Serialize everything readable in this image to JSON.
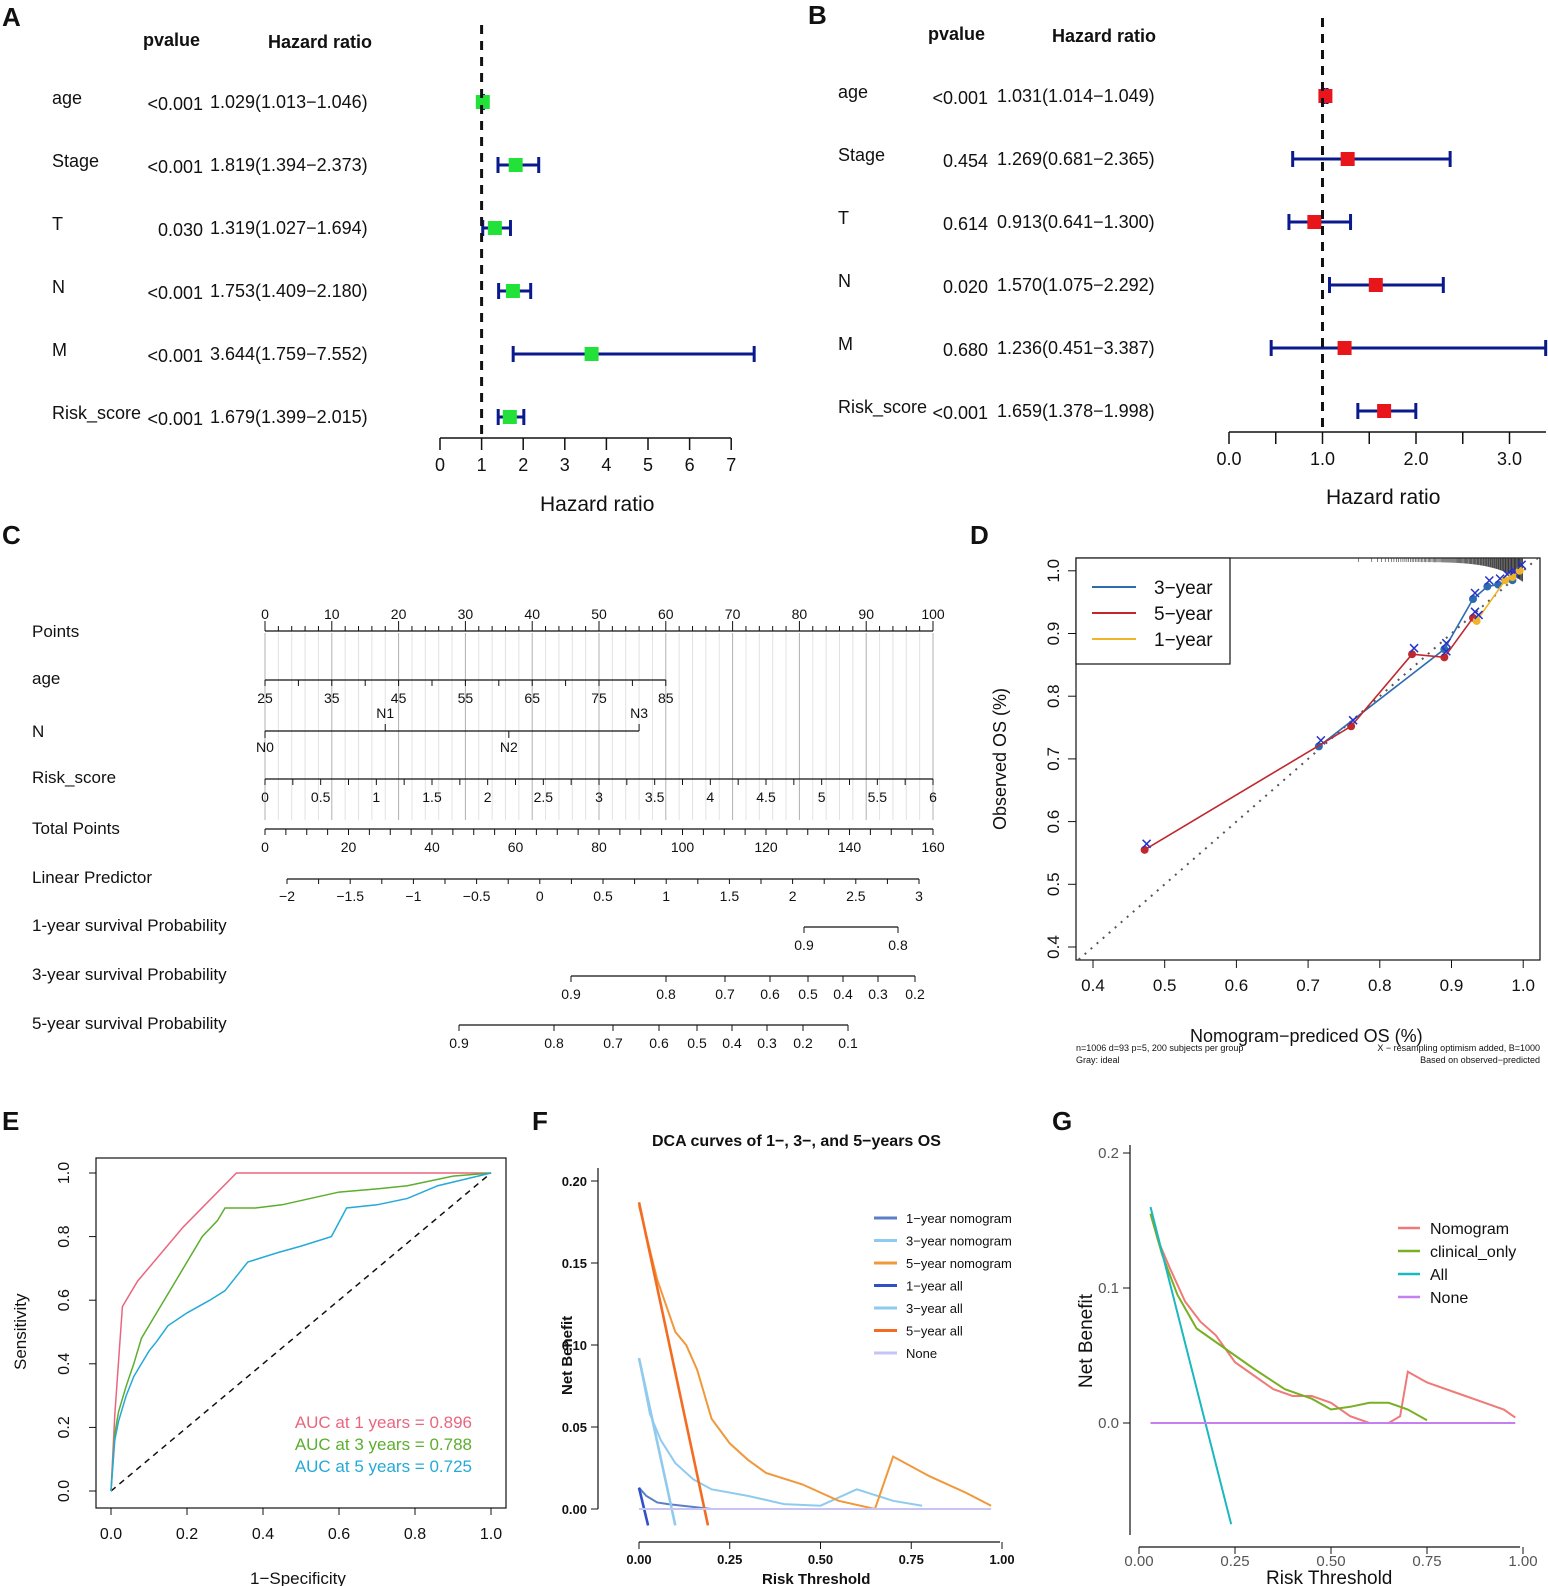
{
  "panels": {
    "A": "A",
    "B": "B",
    "C": "C",
    "D": "D",
    "E": "E",
    "F": "F",
    "G": "G"
  },
  "forestA": {
    "header_pvalue": "pvalue",
    "header_hr": "Hazard ratio",
    "xlabel": "Hazard ratio",
    "ticks": [
      "0",
      "1",
      "2",
      "3",
      "4",
      "5",
      "6",
      "7"
    ],
    "rows": [
      {
        "name": "age",
        "p": "<0.001",
        "hr_text": "1.029(1.013−1.046)",
        "hr": 1.029,
        "lo": 1.013,
        "hi": 1.046
      },
      {
        "name": "Stage",
        "p": "<0.001",
        "hr_text": "1.819(1.394−2.373)",
        "hr": 1.819,
        "lo": 1.394,
        "hi": 2.373
      },
      {
        "name": "T",
        "p": "0.030",
        "hr_text": "1.319(1.027−1.694)",
        "hr": 1.319,
        "lo": 1.027,
        "hi": 1.694
      },
      {
        "name": "N",
        "p": "<0.001",
        "hr_text": "1.753(1.409−2.180)",
        "hr": 1.753,
        "lo": 1.409,
        "hi": 2.18
      },
      {
        "name": "M",
        "p": "<0.001",
        "hr_text": "3.644(1.759−7.552)",
        "hr": 3.644,
        "lo": 1.759,
        "hi": 7.552
      },
      {
        "name": "Risk_score",
        "p": "<0.001",
        "hr_text": "1.679(1.399−2.015)",
        "hr": 1.679,
        "lo": 1.399,
        "hi": 2.015
      }
    ],
    "color_box": "#22e23a",
    "color_ci": "#0a1a8c"
  },
  "forestB": {
    "header_pvalue": "pvalue",
    "header_hr": "Hazard ratio",
    "xlabel": "Hazard ratio",
    "ticks": [
      "0.0",
      "1.0",
      "2.0",
      "3.0"
    ],
    "rows": [
      {
        "name": "age",
        "p": "<0.001",
        "hr_text": "1.031(1.014−1.049)",
        "hr": 1.031,
        "lo": 1.014,
        "hi": 1.049
      },
      {
        "name": "Stage",
        "p": "0.454",
        "hr_text": "1.269(0.681−2.365)",
        "hr": 1.269,
        "lo": 0.681,
        "hi": 2.365
      },
      {
        "name": "T",
        "p": "0.614",
        "hr_text": "0.913(0.641−1.300)",
        "hr": 0.913,
        "lo": 0.641,
        "hi": 1.3
      },
      {
        "name": "N",
        "p": "0.020",
        "hr_text": "1.570(1.075−2.292)",
        "hr": 1.57,
        "lo": 1.075,
        "hi": 2.292
      },
      {
        "name": "M",
        "p": "0.680",
        "hr_text": "1.236(0.451−3.387)",
        "hr": 1.236,
        "lo": 0.451,
        "hi": 3.387
      },
      {
        "name": "Risk_score",
        "p": "<0.001",
        "hr_text": "1.659(1.378−1.998)",
        "hr": 1.659,
        "lo": 1.378,
        "hi": 1.998
      }
    ],
    "color_box": "#e8161b",
    "color_ci": "#0a1a8c"
  },
  "nomogram": {
    "labels": {
      "points": "Points",
      "age": "age",
      "n": "N",
      "risk": "Risk_score",
      "total": "Total Points",
      "lp": "Linear Predictor",
      "s1": "1-year survival Probability",
      "s3": "3-year survival Probability",
      "s5": "5-year survival Probability"
    },
    "points_ticks": [
      "0",
      "10",
      "20",
      "30",
      "40",
      "50",
      "60",
      "70",
      "80",
      "90",
      "100"
    ],
    "age_ticks": [
      "25",
      "35",
      "45",
      "55",
      "65",
      "75",
      "85"
    ],
    "n_ticks": [
      {
        "t": "N1",
        "pos": "up"
      },
      {
        "t": "N3",
        "pos": "up"
      },
      {
        "t": "N0",
        "pos": "down"
      },
      {
        "t": "N2",
        "pos": "down"
      }
    ],
    "risk_ticks": [
      "0",
      "0.5",
      "1",
      "1.5",
      "2",
      "2.5",
      "3",
      "3.5",
      "4",
      "4.5",
      "5",
      "5.5",
      "6"
    ],
    "total_ticks": [
      "0",
      "20",
      "40",
      "60",
      "80",
      "100",
      "120",
      "140",
      "160"
    ],
    "lp_ticks": [
      "−2",
      "−1.5",
      "−1",
      "−0.5",
      "0",
      "0.5",
      "1",
      "1.5",
      "2",
      "2.5",
      "3"
    ],
    "s1_ticks": [
      "0.9",
      "0.8"
    ],
    "s3_ticks": [
      "0.9",
      "0.8",
      "0.7",
      "0.6",
      "0.5",
      "0.4",
      "0.3",
      "0.2"
    ],
    "s5_ticks": [
      "0.9",
      "0.8",
      "0.7",
      "0.6",
      "0.5",
      "0.4",
      "0.3",
      "0.2",
      "0.1"
    ]
  },
  "chart_data": [
    {
      "id": "D",
      "type": "line",
      "title": "",
      "xlabel": "Nomogram−prediced OS (%)",
      "ylabel": "Observed OS (%)",
      "xlim": [
        0.38,
        1.02
      ],
      "ylim": [
        0.38,
        1.03
      ],
      "x_ticks": [
        "0.4",
        "0.5",
        "0.6",
        "0.7",
        "0.8",
        "0.9",
        "1.0"
      ],
      "y_ticks": [
        "0.4",
        "0.5",
        "0.6",
        "0.7",
        "0.8",
        "0.9",
        "1.0"
      ],
      "legend": [
        {
          "name": "3−year",
          "color": "#2b6cb0"
        },
        {
          "name": "5−year",
          "color": "#c0282d"
        },
        {
          "name": "1−year",
          "color": "#f0b429"
        }
      ],
      "series": [
        {
          "name": "3−year",
          "x": [
            0.715,
            0.89,
            0.93,
            0.95,
            0.965,
            0.985
          ],
          "y": [
            0.72,
            0.875,
            0.955,
            0.975,
            0.978,
            0.985
          ]
        },
        {
          "name": "5−year",
          "x": [
            0.472,
            0.76,
            0.845,
            0.89,
            0.93
          ],
          "y": [
            0.555,
            0.752,
            0.867,
            0.862,
            0.925
          ]
        },
        {
          "name": "1−year",
          "x": [
            0.935,
            0.975,
            0.985,
            0.995
          ],
          "y": [
            0.92,
            0.985,
            0.99,
            1.0
          ]
        }
      ],
      "footnotes": [
        "n=1006 d=93 p=5, 200 subjects per group",
        "Gray: ideal",
        "X − resampling optimism added, B=1000",
        "Based on observed−predicted"
      ]
    },
    {
      "id": "E",
      "type": "line",
      "xlabel": "1−Specificity",
      "ylabel": "Sensitivity",
      "x_ticks": [
        "0.0",
        "0.2",
        "0.4",
        "0.6",
        "0.8",
        "1.0"
      ],
      "y_ticks": [
        "0.0",
        "0.2",
        "0.4",
        "0.6",
        "0.8",
        "1.0"
      ],
      "series": [
        {
          "name": "AUC at 1 years = 0.896",
          "color": "#e8677f",
          "x": [
            0,
            0.01,
            0.01,
            0.03,
            0.03,
            0.07,
            0.07,
            0.19,
            0.19,
            0.33,
            0.33,
            1.0
          ],
          "y": [
            0,
            0.24,
            0.24,
            0.58,
            0.58,
            0.66,
            0.66,
            0.83,
            0.83,
            1.0,
            1.0,
            1.0
          ]
        },
        {
          "name": "AUC at 3 years = 0.788",
          "color": "#5cae2e",
          "x": [
            0,
            0.01,
            0.02,
            0.04,
            0.06,
            0.08,
            0.1,
            0.12,
            0.15,
            0.2,
            0.24,
            0.28,
            0.3,
            0.38,
            0.45,
            0.6,
            0.7,
            0.78,
            0.9,
            1.0
          ],
          "y": [
            0,
            0.18,
            0.25,
            0.33,
            0.4,
            0.48,
            0.52,
            0.56,
            0.62,
            0.72,
            0.8,
            0.85,
            0.89,
            0.89,
            0.9,
            0.94,
            0.95,
            0.96,
            0.99,
            1.0
          ]
        },
        {
          "name": "AUC at 5 years = 0.725",
          "color": "#26a9d9",
          "x": [
            0,
            0.01,
            0.02,
            0.04,
            0.06,
            0.08,
            0.1,
            0.12,
            0.15,
            0.2,
            0.26,
            0.3,
            0.36,
            0.44,
            0.5,
            0.58,
            0.62,
            0.7,
            0.78,
            0.86,
            1.0
          ],
          "y": [
            0,
            0.16,
            0.22,
            0.3,
            0.36,
            0.4,
            0.44,
            0.47,
            0.52,
            0.56,
            0.6,
            0.63,
            0.72,
            0.75,
            0.77,
            0.8,
            0.89,
            0.9,
            0.92,
            0.96,
            1.0
          ]
        }
      ]
    },
    {
      "id": "F",
      "type": "line",
      "title": "DCA curves of 1−, 3−, and 5−years OS",
      "xlabel": "Risk Threshold",
      "ylabel": "Net Benefit",
      "x_ticks": [
        "0.00",
        "0.25",
        "0.50",
        "0.75",
        "1.00"
      ],
      "y_ticks": [
        "0.00",
        "0.05",
        "0.10",
        "0.15",
        "0.20"
      ],
      "ylim": [
        -0.01,
        0.21
      ],
      "series": [
        {
          "name": "1−year nomogram",
          "color": "#5b7fc6",
          "x": [
            0.0,
            0.02,
            0.05,
            0.08,
            0.12,
            0.2
          ],
          "y": [
            0.013,
            0.008,
            0.004,
            0.003,
            0.002,
            0.0
          ]
        },
        {
          "name": "3−year nomogram",
          "color": "#8fcbee",
          "x": [
            0.0,
            0.03,
            0.06,
            0.1,
            0.15,
            0.2,
            0.3,
            0.4,
            0.5,
            0.6,
            0.7,
            0.78
          ],
          "y": [
            0.092,
            0.058,
            0.042,
            0.028,
            0.018,
            0.012,
            0.008,
            0.003,
            0.002,
            0.012,
            0.005,
            0.002
          ]
        },
        {
          "name": "5−year nomogram",
          "color": "#f0983a",
          "x": [
            0.0,
            0.05,
            0.1,
            0.13,
            0.16,
            0.2,
            0.25,
            0.3,
            0.35,
            0.45,
            0.55,
            0.65,
            0.7,
            0.8,
            0.9,
            0.97
          ],
          "y": [
            0.185,
            0.14,
            0.108,
            0.1,
            0.085,
            0.055,
            0.04,
            0.03,
            0.022,
            0.015,
            0.005,
            0.0,
            0.032,
            0.02,
            0.01,
            0.002
          ]
        },
        {
          "name": "1−year all",
          "color": "#3050c8",
          "x": [
            0.0,
            0.025
          ],
          "y": [
            0.013,
            -0.01
          ]
        },
        {
          "name": "3−year all",
          "color": "#8fcbee",
          "x": [
            0.0,
            0.1
          ],
          "y": [
            0.092,
            -0.01
          ]
        },
        {
          "name": "5−year all",
          "color": "#f36c21",
          "x": [
            0.0,
            0.19
          ],
          "y": [
            0.187,
            -0.01
          ]
        },
        {
          "name": "None",
          "color": "#c7c3f2",
          "x": [
            0.0,
            0.97
          ],
          "y": [
            0.0,
            0.0
          ]
        }
      ]
    },
    {
      "id": "G",
      "type": "line",
      "xlabel": "Risk Threshold",
      "ylabel": "Net Benefit",
      "x_ticks": [
        "0.00",
        "0.25",
        "0.50",
        "0.75",
        "1.00"
      ],
      "y_ticks": [
        "0.0",
        "0.1",
        "0.2"
      ],
      "ylim": [
        -0.075,
        0.21
      ],
      "series": [
        {
          "name": "Nomogram",
          "color": "#ef7a78",
          "x": [
            0.03,
            0.05,
            0.08,
            0.12,
            0.16,
            0.2,
            0.25,
            0.3,
            0.35,
            0.4,
            0.45,
            0.5,
            0.55,
            0.6,
            0.65,
            0.68,
            0.7,
            0.75,
            0.85,
            0.95,
            0.98
          ],
          "y": [
            0.155,
            0.135,
            0.115,
            0.09,
            0.075,
            0.065,
            0.045,
            0.035,
            0.025,
            0.02,
            0.02,
            0.015,
            0.005,
            0.0,
            0.0,
            0.005,
            0.038,
            0.03,
            0.02,
            0.01,
            0.004
          ]
        },
        {
          "name": "clinical_only",
          "color": "#78b024",
          "x": [
            0.03,
            0.06,
            0.1,
            0.15,
            0.2,
            0.25,
            0.3,
            0.38,
            0.45,
            0.5,
            0.55,
            0.6,
            0.65,
            0.7,
            0.75
          ],
          "y": [
            0.155,
            0.125,
            0.095,
            0.07,
            0.06,
            0.05,
            0.04,
            0.025,
            0.018,
            0.01,
            0.012,
            0.015,
            0.015,
            0.01,
            0.002
          ]
        },
        {
          "name": "All",
          "color": "#1bb8c0",
          "x": [
            0.03,
            0.24
          ],
          "y": [
            0.16,
            -0.075
          ]
        },
        {
          "name": "None",
          "color": "#c67ff0",
          "x": [
            0.03,
            0.98
          ],
          "y": [
            0.0,
            0.0
          ]
        }
      ]
    }
  ]
}
